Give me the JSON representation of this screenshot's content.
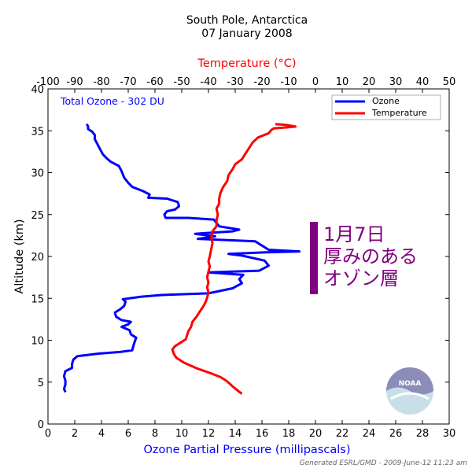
{
  "title": {
    "line1": "South Pole, Antarctica",
    "line2": "07 January 2008"
  },
  "total_ozone_label": "Total Ozone - 302 DU",
  "annotation": {
    "lines": [
      "1月7日",
      "厚みのある",
      "オゾン層"
    ],
    "color": "#800080"
  },
  "credit": "Generated ESRL/GMD - 2009-June-12 11:23 am",
  "logo_text": "NOAA",
  "chart_data": {
    "type": "line",
    "xlabel_bottom": "Ozone Partial Pressure (millipascals)",
    "xlabel_top": "Temperature (°C)",
    "ylabel": "Altitude (km)",
    "xlim_bottom": [
      0,
      30
    ],
    "xlim_top": [
      -100,
      50
    ],
    "ylim": [
      0,
      40
    ],
    "xticks_bottom": [
      0,
      2,
      4,
      6,
      8,
      10,
      12,
      14,
      16,
      18,
      20,
      22,
      24,
      26,
      28,
      30
    ],
    "xticks_top": [
      -100,
      -90,
      -80,
      -70,
      -60,
      -50,
      -40,
      -30,
      -20,
      -10,
      0,
      10,
      20,
      30,
      40,
      50
    ],
    "yticks": [
      0,
      5,
      10,
      15,
      20,
      25,
      30,
      35,
      40
    ],
    "grid": false,
    "legend": {
      "position": "top-right",
      "entries": [
        "Ozone",
        "Temperature"
      ]
    },
    "colors": {
      "ozone": "#0000ff",
      "temperature": "#ff0000"
    },
    "series": [
      {
        "name": "Ozone",
        "axis": "bottom",
        "points": [
          [
            1.3,
            3.8
          ],
          [
            1.2,
            4.2
          ],
          [
            1.3,
            4.7
          ],
          [
            1.3,
            5.2
          ],
          [
            1.2,
            5.7
          ],
          [
            1.3,
            6.3
          ],
          [
            1.8,
            6.7
          ],
          [
            1.8,
            7.2
          ],
          [
            1.9,
            7.7
          ],
          [
            2.2,
            8.1
          ],
          [
            3.8,
            8.4
          ],
          [
            5.4,
            8.6
          ],
          [
            6.3,
            8.8
          ],
          [
            6.4,
            9.4
          ],
          [
            6.5,
            9.9
          ],
          [
            6.6,
            10.3
          ],
          [
            6.2,
            10.7
          ],
          [
            6.1,
            11.2
          ],
          [
            5.5,
            11.6
          ],
          [
            6.0,
            11.9
          ],
          [
            6.2,
            12.2
          ],
          [
            5.5,
            12.4
          ],
          [
            5.1,
            12.8
          ],
          [
            5.0,
            13.3
          ],
          [
            5.4,
            13.7
          ],
          [
            5.7,
            14.1
          ],
          [
            5.8,
            14.6
          ],
          [
            5.6,
            14.9
          ],
          [
            7.0,
            15.2
          ],
          [
            8.5,
            15.4
          ],
          [
            10.3,
            15.5
          ],
          [
            12.0,
            15.6
          ],
          [
            13.8,
            16.2
          ],
          [
            14.5,
            16.8
          ],
          [
            14.3,
            17.3
          ],
          [
            14.6,
            17.8
          ],
          [
            12.0,
            18.1
          ],
          [
            15.8,
            18.3
          ],
          [
            16.5,
            18.9
          ],
          [
            16.2,
            19.5
          ],
          [
            14.5,
            20.1
          ],
          [
            13.5,
            20.3
          ],
          [
            16.3,
            20.5
          ],
          [
            18.8,
            20.6
          ],
          [
            16.5,
            20.8
          ],
          [
            15.5,
            21.8
          ],
          [
            11.2,
            22.1
          ],
          [
            12.5,
            22.4
          ],
          [
            11.0,
            22.7
          ],
          [
            13.8,
            23.0
          ],
          [
            14.3,
            23.2
          ],
          [
            12.8,
            23.6
          ],
          [
            12.6,
            24.0
          ],
          [
            12.4,
            24.4
          ],
          [
            10.5,
            24.6
          ],
          [
            8.8,
            24.6
          ],
          [
            8.7,
            25.0
          ],
          [
            8.9,
            25.4
          ],
          [
            9.5,
            25.6
          ],
          [
            9.8,
            26.0
          ],
          [
            9.7,
            26.5
          ],
          [
            8.9,
            26.9
          ],
          [
            7.5,
            27.0
          ],
          [
            7.6,
            27.4
          ],
          [
            7.1,
            27.8
          ],
          [
            6.3,
            28.3
          ],
          [
            6.0,
            28.8
          ],
          [
            5.7,
            29.4
          ],
          [
            5.5,
            30.2
          ],
          [
            5.3,
            30.8
          ],
          [
            4.7,
            31.3
          ],
          [
            4.4,
            31.7
          ],
          [
            4.1,
            32.2
          ],
          [
            3.9,
            32.8
          ],
          [
            3.7,
            33.4
          ],
          [
            3.5,
            34.0
          ],
          [
            3.5,
            34.5
          ],
          [
            3.3,
            34.9
          ],
          [
            3.0,
            35.2
          ],
          [
            3.0,
            35.5
          ],
          [
            2.9,
            35.8
          ]
        ]
      },
      {
        "name": "Temperature",
        "axis": "top",
        "points": [
          [
            -27.5,
            3.6
          ],
          [
            -29.5,
            4.1
          ],
          [
            -31.0,
            4.5
          ],
          [
            -32.0,
            4.8
          ],
          [
            -33.5,
            5.2
          ],
          [
            -35.5,
            5.6
          ],
          [
            -39.5,
            6.1
          ],
          [
            -44.0,
            6.6
          ],
          [
            -49.0,
            7.3
          ],
          [
            -52.0,
            7.9
          ],
          [
            -53.0,
            8.4
          ],
          [
            -53.5,
            8.9
          ],
          [
            -52.5,
            9.3
          ],
          [
            -50.5,
            9.7
          ],
          [
            -48.5,
            10.1
          ],
          [
            -48.0,
            10.6
          ],
          [
            -47.5,
            11.1
          ],
          [
            -46.5,
            11.6
          ],
          [
            -46.0,
            12.2
          ],
          [
            -44.5,
            12.8
          ],
          [
            -43.5,
            13.3
          ],
          [
            -42.0,
            14.0
          ],
          [
            -41.0,
            14.6
          ],
          [
            -40.5,
            15.1
          ],
          [
            -40.0,
            15.7
          ],
          [
            -40.5,
            16.3
          ],
          [
            -40.0,
            16.9
          ],
          [
            -40.5,
            17.5
          ],
          [
            -40.0,
            18.2
          ],
          [
            -39.5,
            18.8
          ],
          [
            -40.0,
            19.4
          ],
          [
            -39.5,
            20.0
          ],
          [
            -39.0,
            20.8
          ],
          [
            -38.5,
            21.6
          ],
          [
            -39.0,
            22.3
          ],
          [
            -38.5,
            23.0
          ],
          [
            -37.0,
            23.6
          ],
          [
            -37.0,
            24.3
          ],
          [
            -36.5,
            25.0
          ],
          [
            -37.0,
            25.7
          ],
          [
            -36.0,
            26.3
          ],
          [
            -36.0,
            26.9
          ],
          [
            -35.5,
            27.6
          ],
          [
            -34.5,
            28.3
          ],
          [
            -33.0,
            29.0
          ],
          [
            -32.5,
            29.7
          ],
          [
            -31.0,
            30.4
          ],
          [
            -30.0,
            31.0
          ],
          [
            -27.5,
            31.6
          ],
          [
            -26.5,
            32.1
          ],
          [
            -25.5,
            32.6
          ],
          [
            -24.5,
            33.1
          ],
          [
            -23.5,
            33.6
          ],
          [
            -21.5,
            34.2
          ],
          [
            -17.5,
            34.7
          ],
          [
            -16.5,
            35.1
          ],
          [
            -15.5,
            35.3
          ],
          [
            -11.0,
            35.4
          ],
          [
            -7.5,
            35.5
          ],
          [
            -11.0,
            35.7
          ],
          [
            -15.0,
            35.8
          ]
        ]
      }
    ]
  }
}
